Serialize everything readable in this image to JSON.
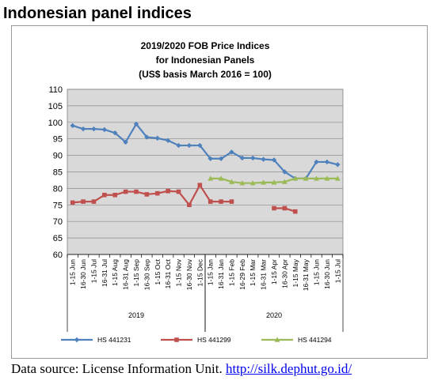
{
  "page": {
    "heading": "Indonesian panel indices",
    "source_text": "Data source: License Information Unit. ",
    "source_link": "http://silk.dephut.go.id/"
  },
  "chart_data": {
    "type": "line",
    "title_lines": [
      "2019/2020 FOB Price Indices",
      "for Indonesian Panels",
      "(US$ basis March 2016 = 100)"
    ],
    "categories": [
      "1-15 Jun",
      "16-30 Jun",
      "1-15 Jul",
      "16-31 Jul",
      "1-15 Aug",
      "16-31 Aug",
      "1-15 Sep",
      "16-30 Sep",
      "1-15 Oct",
      "16-31 Oct",
      "1-15 Nov",
      "16-30 Nov",
      "1-15 Dec",
      "1-15 Jan",
      "16-31 Jan",
      "1-15 Feb",
      "16-29 Feb",
      "1-15 Mar",
      "16-31 Mar",
      "1-15 Apr",
      "16-30 Apr",
      "1-15 May",
      "16-31 May",
      "1-15 Jun",
      "16-30 Jun",
      "1-15 Jul"
    ],
    "year_groups": [
      {
        "label": "2019",
        "start": 0,
        "end": 12
      },
      {
        "label": "2020",
        "start": 13,
        "end": 25
      }
    ],
    "ylim": [
      60,
      110
    ],
    "yticks": [
      60,
      65,
      70,
      75,
      80,
      85,
      90,
      95,
      100,
      105,
      110
    ],
    "grid": true,
    "plot_background": "#d9d9d9",
    "legend_position": "bottom",
    "series": [
      {
        "name": "HS 441231",
        "color": "#4f81bd",
        "marker": "diamond",
        "values": [
          99,
          98,
          98,
          97.8,
          96.8,
          94,
          99.5,
          95.5,
          95.2,
          94.5,
          93,
          93,
          93,
          89,
          89,
          91,
          89.2,
          89.2,
          88.8,
          88.6,
          85,
          83,
          83,
          88,
          88,
          87.2
        ]
      },
      {
        "name": "HS 441299",
        "color": "#c0504d",
        "marker": "square",
        "values": [
          75.7,
          76,
          76,
          78,
          78,
          79,
          79,
          78.2,
          78.5,
          79.2,
          79,
          75,
          81,
          76,
          76,
          76,
          null,
          null,
          null,
          74,
          74,
          73,
          null,
          null,
          null,
          null
        ]
      },
      {
        "name": "HS 441294",
        "color": "#9bbb59",
        "marker": "triangle",
        "values": [
          null,
          null,
          null,
          null,
          null,
          null,
          null,
          null,
          null,
          null,
          null,
          null,
          null,
          83,
          83,
          82,
          81.6,
          81.6,
          81.8,
          81.8,
          82,
          83,
          83,
          83,
          83,
          83
        ]
      }
    ]
  }
}
